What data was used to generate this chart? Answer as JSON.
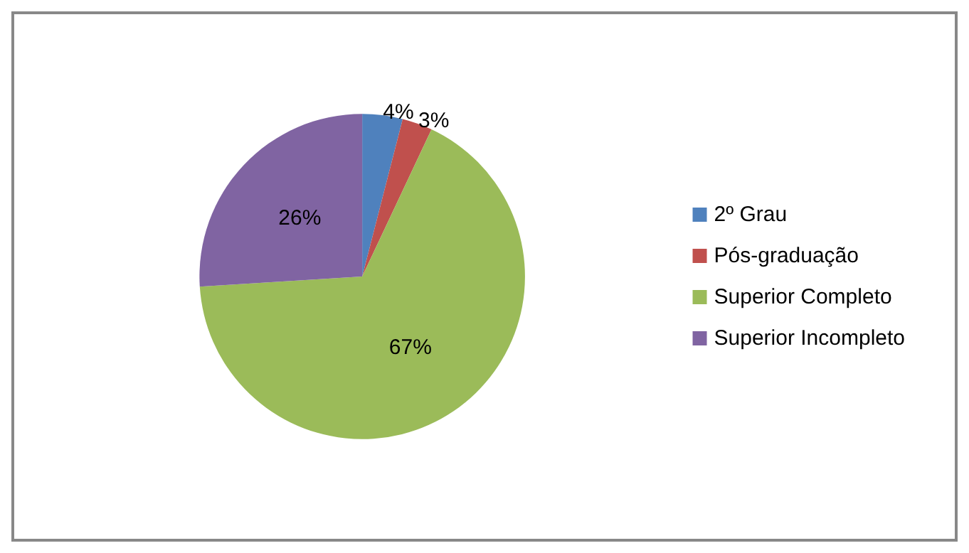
{
  "chart_data": {
    "type": "pie",
    "categories": [
      "2º Grau",
      "Pós-graduação",
      "Superior Completo",
      "Superior Incompleto"
    ],
    "values": [
      4,
      3,
      67,
      26
    ],
    "colors": [
      "#4f81bd",
      "#c0504d",
      "#9bbb59",
      "#8064a2"
    ],
    "value_labels": [
      "4%",
      "3%",
      "67%",
      "26%"
    ],
    "legend": "right"
  }
}
